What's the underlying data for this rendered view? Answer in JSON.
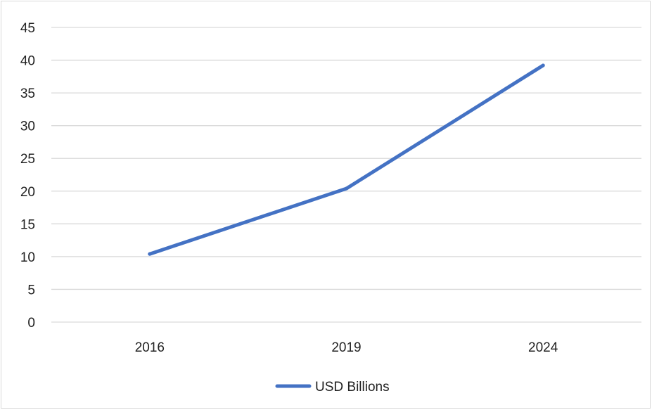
{
  "chart_data": {
    "type": "line",
    "title": "",
    "xlabel": "",
    "ylabel": "",
    "categories": [
      "2016",
      "2019",
      "2024"
    ],
    "series": [
      {
        "name": "USD Billions",
        "values": [
          10.4,
          20.4,
          39.2
        ],
        "color": "#4472c4"
      }
    ],
    "ylim": [
      0,
      45
    ],
    "yticks": [
      "0",
      "5",
      "10",
      "15",
      "20",
      "25",
      "30",
      "35",
      "40",
      "45"
    ],
    "grid": true,
    "gridline_color": "#d9d9d9",
    "legend_position": "bottom"
  }
}
